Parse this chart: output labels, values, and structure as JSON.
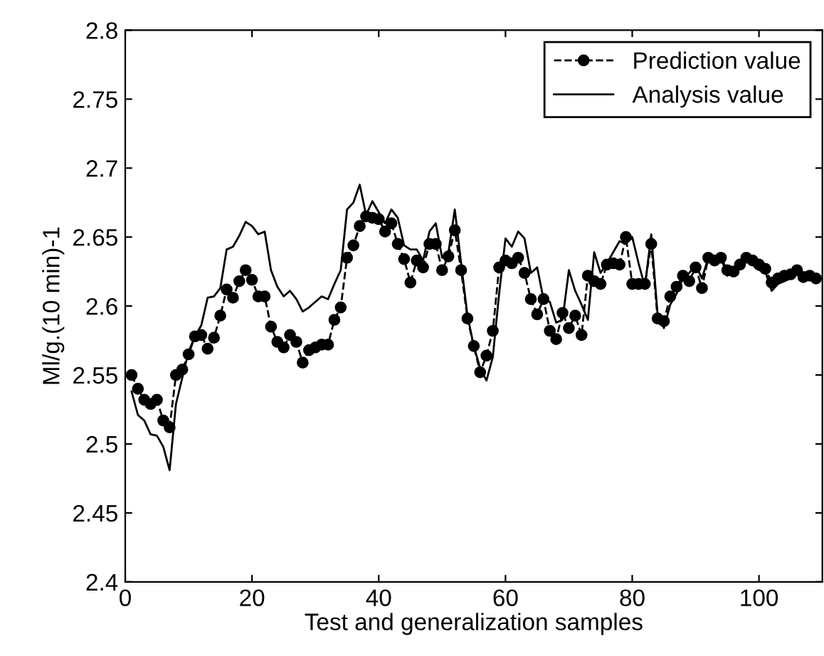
{
  "chart_data": {
    "type": "line",
    "xlabel": "Test and generalization samples",
    "ylabel": "Ml/g.(10 min)-1",
    "x": [
      1,
      2,
      3,
      4,
      5,
      6,
      7,
      8,
      9,
      10,
      11,
      12,
      13,
      14,
      15,
      16,
      17,
      18,
      19,
      20,
      21,
      22,
      23,
      24,
      25,
      26,
      27,
      28,
      29,
      30,
      31,
      32,
      33,
      34,
      35,
      36,
      37,
      38,
      39,
      40,
      41,
      42,
      43,
      44,
      45,
      46,
      47,
      48,
      49,
      50,
      51,
      52,
      53,
      54,
      55,
      56,
      57,
      58,
      59,
      60,
      61,
      62,
      63,
      64,
      65,
      66,
      67,
      68,
      69,
      70,
      71,
      72,
      73,
      74,
      75,
      76,
      77,
      78,
      79,
      80,
      81,
      82,
      83,
      84,
      85,
      86,
      87,
      88,
      89,
      90,
      91,
      92,
      93,
      94,
      95,
      96,
      97,
      98,
      99,
      100,
      101,
      102,
      103,
      104,
      105,
      106,
      107,
      108,
      109
    ],
    "series": [
      {
        "name": "Prediction value",
        "color": "#000000",
        "marker": "circle",
        "line_style": "dashed",
        "values": [
          2.55,
          2.54,
          2.532,
          2.529,
          2.532,
          2.517,
          2.512,
          2.55,
          2.554,
          2.565,
          2.578,
          2.579,
          2.569,
          2.577,
          2.593,
          2.612,
          2.606,
          2.618,
          2.626,
          2.619,
          2.607,
          2.607,
          2.585,
          2.574,
          2.57,
          2.579,
          2.574,
          2.559,
          2.568,
          2.57,
          2.572,
          2.572,
          2.59,
          2.599,
          2.635,
          2.644,
          2.658,
          2.665,
          2.664,
          2.663,
          2.654,
          2.66,
          2.645,
          2.634,
          2.617,
          2.633,
          2.628,
          2.645,
          2.645,
          2.626,
          2.636,
          2.655,
          2.626,
          2.591,
          2.571,
          2.552,
          2.564,
          2.582,
          2.628,
          2.633,
          2.631,
          2.635,
          2.624,
          2.605,
          2.594,
          2.605,
          2.582,
          2.576,
          2.595,
          2.584,
          2.593,
          2.579,
          2.622,
          2.618,
          2.616,
          2.63,
          2.631,
          2.63,
          2.65,
          2.616,
          2.616,
          2.616,
          2.645,
          2.591,
          2.589,
          2.607,
          2.614,
          2.622,
          2.618,
          2.628,
          2.613,
          2.635,
          2.633,
          2.635,
          2.626,
          2.625,
          2.63,
          2.635,
          2.633,
          2.63,
          2.627,
          2.617,
          2.62,
          2.622,
          2.623,
          2.626,
          2.621,
          2.622,
          2.62
        ]
      },
      {
        "name": "Analysis value",
        "color": "#000000",
        "marker": "none",
        "line_style": "solid",
        "values": [
          2.538,
          2.521,
          2.517,
          2.507,
          2.506,
          2.498,
          2.481,
          2.529,
          2.548,
          2.567,
          2.578,
          2.586,
          2.606,
          2.607,
          2.613,
          2.641,
          2.643,
          2.651,
          2.661,
          2.658,
          2.652,
          2.654,
          2.626,
          2.614,
          2.607,
          2.611,
          2.605,
          2.596,
          2.599,
          2.603,
          2.607,
          2.605,
          2.616,
          2.626,
          2.67,
          2.675,
          2.688,
          2.666,
          2.676,
          2.668,
          2.66,
          2.67,
          2.664,
          2.644,
          2.641,
          2.641,
          2.633,
          2.654,
          2.66,
          2.635,
          2.639,
          2.67,
          2.631,
          2.593,
          2.571,
          2.555,
          2.546,
          2.563,
          2.609,
          2.649,
          2.643,
          2.654,
          2.649,
          2.624,
          2.628,
          2.605,
          2.603,
          2.588,
          2.59,
          2.626,
          2.611,
          2.601,
          2.59,
          2.639,
          2.624,
          2.631,
          2.639,
          2.647,
          2.645,
          2.65,
          2.631,
          2.614,
          2.652,
          2.594,
          2.584,
          2.601,
          2.609,
          2.62,
          2.624,
          2.63,
          2.62,
          2.635,
          2.631,
          2.635,
          2.622,
          2.624,
          2.63,
          2.635,
          2.633,
          2.626,
          2.625,
          2.611,
          2.616,
          2.618,
          2.62,
          2.624,
          2.618,
          2.62,
          2.618
        ]
      }
    ],
    "xlim": [
      0,
      110
    ],
    "xticks": [
      0,
      20,
      40,
      60,
      80,
      100
    ],
    "ylim": [
      2.4,
      2.8
    ],
    "yticks": [
      2.4,
      2.45,
      2.5,
      2.55,
      2.6,
      2.65,
      2.7,
      2.75,
      2.8
    ],
    "grid": false,
    "legend": "top right"
  }
}
